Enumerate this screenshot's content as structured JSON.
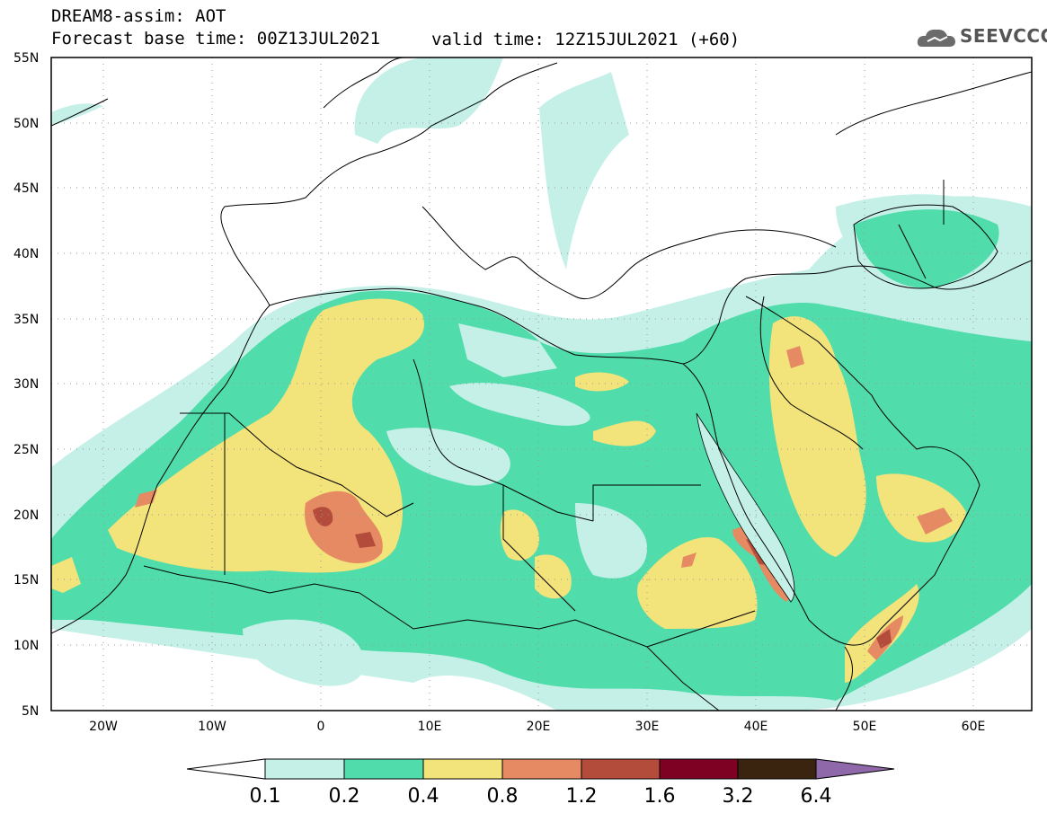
{
  "header": {
    "model_line": "DREAM8-assim: AOT",
    "base_time": "Forecast base time: 00Z13JUL2021",
    "valid_time": "valid time: 12Z15JUL2021 (+60)",
    "logo_text": "SEEVCCC"
  },
  "map": {
    "lon_range": [
      -25,
      65
    ],
    "lat_range": [
      5,
      55
    ],
    "grid": "dotted",
    "lat_ticks": [
      "55N",
      "50N",
      "45N",
      "40N",
      "35N",
      "30N",
      "25N",
      "20N",
      "15N",
      "10N",
      "5N"
    ],
    "lon_ticks": [
      "20W",
      "10W",
      "0",
      "10E",
      "20E",
      "30E",
      "40E",
      "50E",
      "60E"
    ]
  },
  "colorbar": {
    "levels": [
      "0.1",
      "0.2",
      "0.4",
      "0.8",
      "1.2",
      "1.6",
      "3.2",
      "6.4"
    ],
    "colors": [
      "#ffffff",
      "#c5f0e8",
      "#50dcab",
      "#f2e37a",
      "#e58a62",
      "#b44c3c",
      "#7e0022",
      "#3a2410",
      "#8e68a8"
    ]
  }
}
